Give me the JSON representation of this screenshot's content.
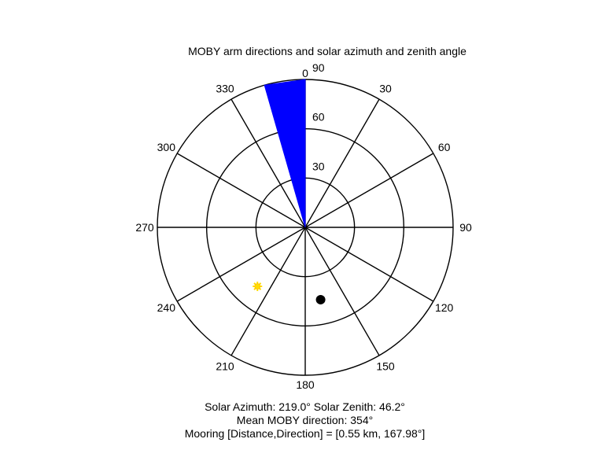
{
  "chart_data": {
    "type": "polar",
    "title": "MOBY arm directions and solar azimuth and zenith angle",
    "angular_axis": {
      "zero_direction": "up",
      "rotation": "clockwise",
      "spoke_step_deg": 30,
      "tick_labels": [
        "0",
        "30",
        "60",
        "90",
        "120",
        "150",
        "180",
        "210",
        "240",
        "270",
        "300",
        "330"
      ]
    },
    "radial_axis": {
      "max": 90,
      "rings": [
        30,
        60,
        90
      ],
      "tick_labels": [
        "30",
        "60",
        "90"
      ]
    },
    "grid": true,
    "series": [
      {
        "kind": "wedge",
        "color": "#0000ff",
        "start_deg": 344,
        "end_deg": 360,
        "radius": 90
      },
      {
        "kind": "marker",
        "marker": "sun",
        "color": "#ffdd00",
        "azimuth_deg": 219.0,
        "zenith_deg": 46.2
      },
      {
        "kind": "marker",
        "marker": "dot",
        "color": "#000000",
        "azimuth_deg": 167.98,
        "radius": 45
      }
    ],
    "annotations": [
      "Solar Azimuth: 219.0°   Solar Zenith: 46.2°",
      "Mean MOBY direction: 354°",
      "Mooring [Distance,Direction] = [0.55 km, 167.98°]"
    ]
  }
}
